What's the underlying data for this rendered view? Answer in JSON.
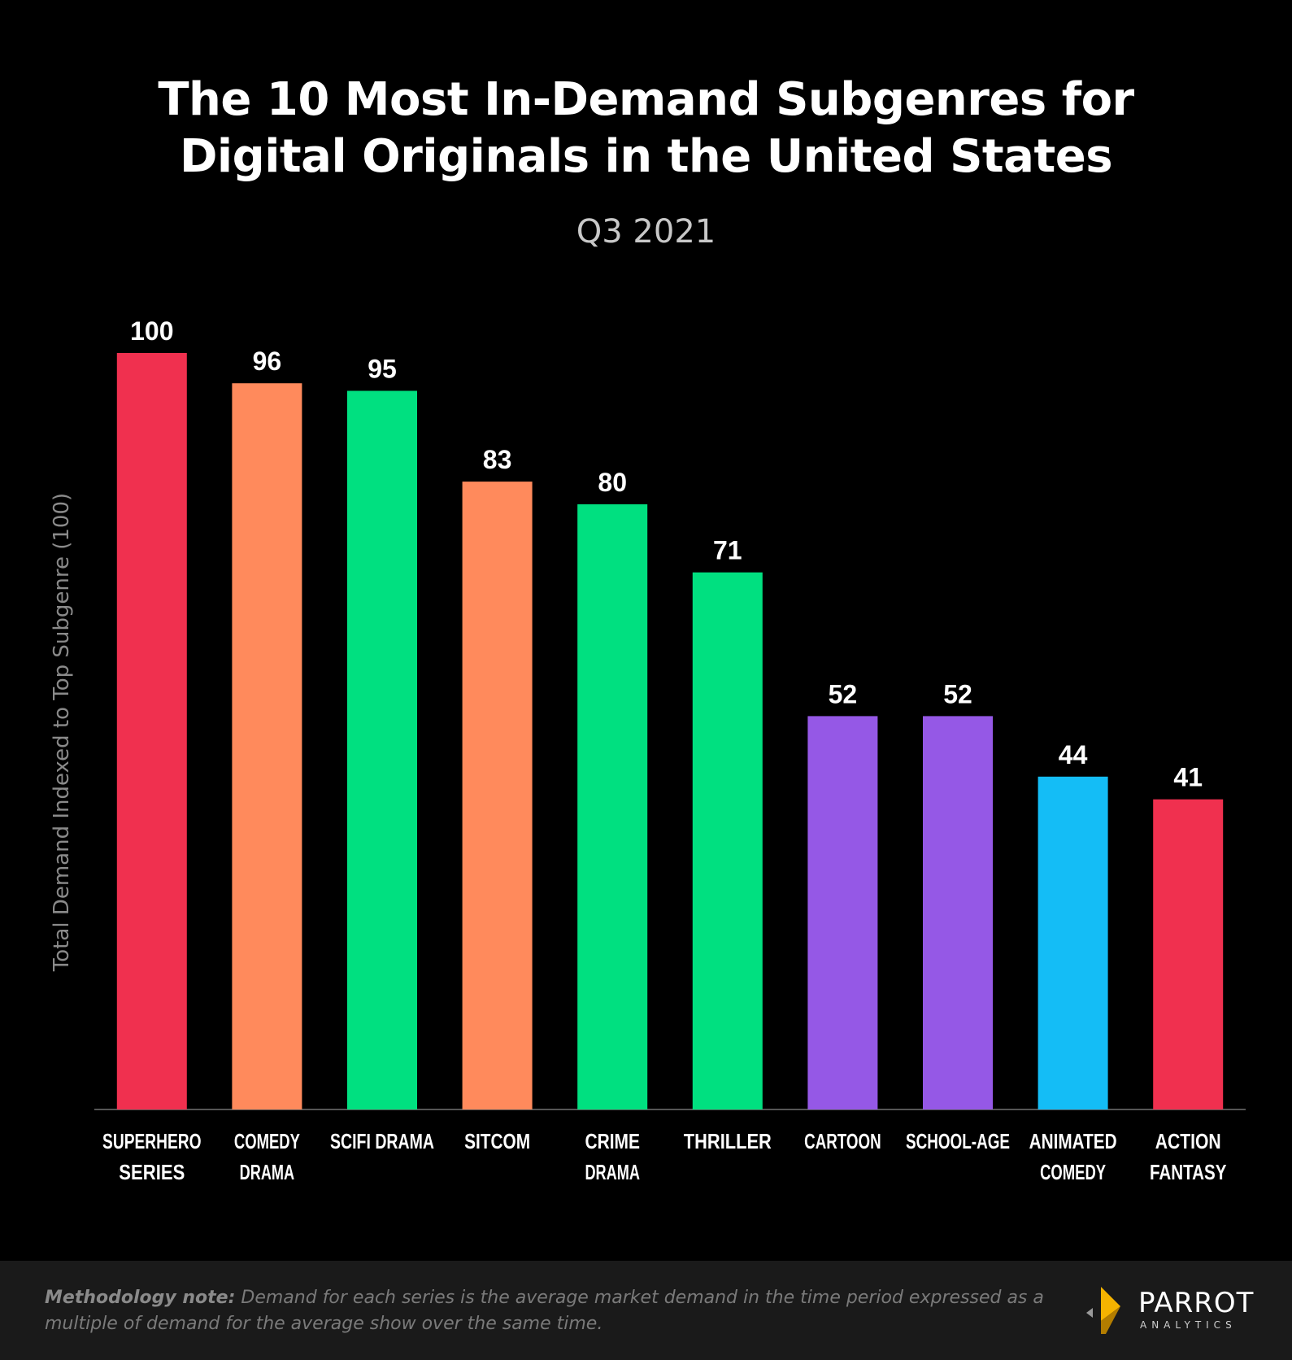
{
  "title_line1": "The 10 Most In-Demand Subgenres for",
  "title_line2": "Digital Originals in the United States",
  "subtitle": "Q3 2021",
  "footer": {
    "note_label": "Methodology note:",
    "note_text": "Demand for each series is the average market demand in the time period expressed as a multiple of demand for the average show over the same time.",
    "logo_word": "PARROT",
    "logo_sub": "ANALYTICS",
    "logo_colors": {
      "gold": "#f5b300",
      "dark_gold": "#b37d00",
      "arrow": "#9a9a9a"
    }
  },
  "chart_data": {
    "type": "bar",
    "title": "The 10 Most In-Demand Subgenres for Digital Originals in the United States",
    "subtitle": "Q3 2021",
    "xlabel": "",
    "ylabel": "Total Demand Indexed to Top Subgenre (100)",
    "ylim": [
      0,
      100
    ],
    "grid": false,
    "categories": [
      [
        "SUPERHERO",
        "SERIES"
      ],
      [
        "COMEDY",
        "DRAMA"
      ],
      [
        "SCIFI DRAMA"
      ],
      [
        "SITCOM"
      ],
      [
        "CRIME",
        "DRAMA"
      ],
      [
        "THRILLER"
      ],
      [
        "CARTOON"
      ],
      [
        "SCHOOL-AGE"
      ],
      [
        "ANIMATED",
        "COMEDY"
      ],
      [
        "ACTION",
        "FANTASY"
      ]
    ],
    "values": [
      100,
      96,
      95,
      83,
      80,
      71,
      52,
      52,
      44,
      41
    ],
    "colors": [
      "#f0304f",
      "#ff8a5c",
      "#00e080",
      "#ff8a5c",
      "#00e080",
      "#00e080",
      "#9558e6",
      "#9558e6",
      "#14bdf6",
      "#f0304f"
    ],
    "axis_color": "#555555",
    "label_color": "#ffffff"
  }
}
